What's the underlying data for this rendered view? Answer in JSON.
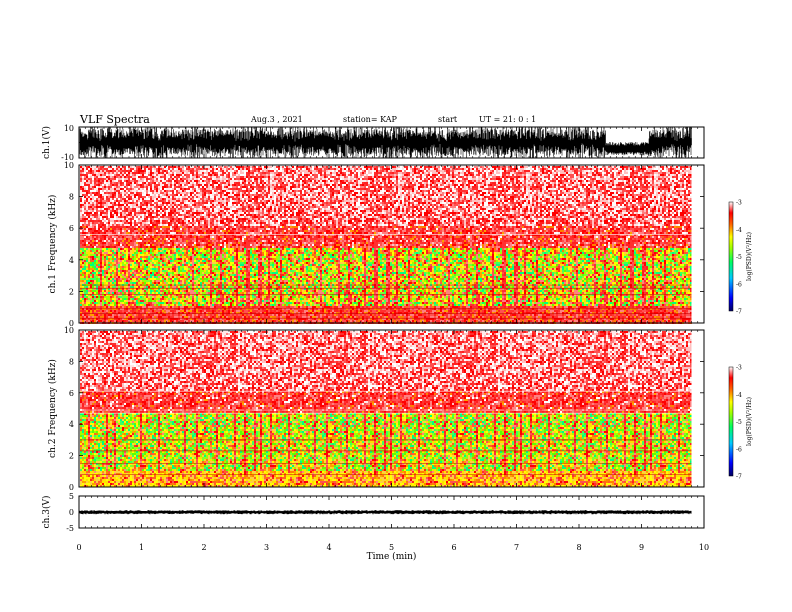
{
  "header": {
    "title": "VLF Spectra",
    "date": "Aug.3  , 2021",
    "station": "station= KAP",
    "start_label": "start",
    "start_ut": "UT =   21: 0  : 1"
  },
  "colors": {
    "trace": "#000000",
    "axis": "#000000"
  },
  "chart_data": [
    {
      "type": "line",
      "ylabel": "ch.1(V)",
      "ylim": [
        -10,
        10
      ],
      "yticks": [
        "10",
        "-10"
      ],
      "xlim": [
        0,
        10
      ],
      "data_extent_min": 9.8,
      "description_of_signal": "dense noisy waveform spanning nearly full ±10 V range"
    },
    {
      "type": "heatmap",
      "ylabel": "ch.1 Frequency  (kHz)",
      "ylim": [
        0,
        10
      ],
      "yticks": [
        "0",
        "2",
        "4",
        "6",
        "8",
        "10"
      ],
      "xlim": [
        0,
        10
      ],
      "data_extent_min": 9.8,
      "colorbar": {
        "label": "log(PSD)(V²/Hz)",
        "range": [
          -7,
          -3
        ],
        "ticks": [
          "-3",
          "-4",
          "-5",
          "-6",
          "-7"
        ],
        "colors": [
          "#000080",
          "#0000ff",
          "#00c0ff",
          "#00ff80",
          "#80ff00",
          "#ffff00",
          "#ff8000",
          "#ff0000",
          "#ffffff"
        ]
      },
      "bands": [
        {
          "from_khz": 0,
          "to_khz": 1.0,
          "level": "red"
        },
        {
          "from_khz": 1.0,
          "to_khz": 4.8,
          "level": "green-yellow"
        },
        {
          "from_khz": 4.8,
          "to_khz": 6.0,
          "level": "red"
        },
        {
          "from_khz": 6.0,
          "to_khz": 10,
          "level": "red-white"
        }
      ]
    },
    {
      "type": "heatmap",
      "ylabel": "ch.2 Frequency  (kHz)",
      "ylim": [
        0,
        10
      ],
      "yticks": [
        "0",
        "2",
        "4",
        "6",
        "8",
        "10"
      ],
      "xlim": [
        0,
        10
      ],
      "data_extent_min": 9.8,
      "colorbar": {
        "label": "log(PSD)(V²/Hz)",
        "range": [
          -7,
          -3
        ],
        "ticks": [
          "-3",
          "-4",
          "-5",
          "-6",
          "-7"
        ],
        "colors": [
          "#000080",
          "#0000ff",
          "#00c0ff",
          "#00ff80",
          "#80ff00",
          "#ffff00",
          "#ff8000",
          "#ff0000",
          "#ffffff"
        ]
      },
      "bands": [
        {
          "from_khz": 0,
          "to_khz": 1.0,
          "level": "yellow"
        },
        {
          "from_khz": 1.0,
          "to_khz": 4.5,
          "level": "green-yellow"
        },
        {
          "from_khz": 4.5,
          "to_khz": 5.5,
          "level": "red"
        },
        {
          "from_khz": 5.5,
          "to_khz": 10,
          "level": "red-white"
        }
      ]
    },
    {
      "type": "line",
      "ylabel": "ch.3(V)",
      "ylim": [
        -5,
        5
      ],
      "yticks": [
        "5",
        "0",
        "-5"
      ],
      "xlim": [
        0,
        10
      ],
      "xticks": [
        "0",
        "1",
        "2",
        "3",
        "4",
        "5",
        "6",
        "7",
        "8",
        "9",
        "10"
      ],
      "xlabel": "Time  (min)",
      "data_extent_min": 9.8,
      "description_of_signal": "flat thick band around 0 V"
    }
  ]
}
